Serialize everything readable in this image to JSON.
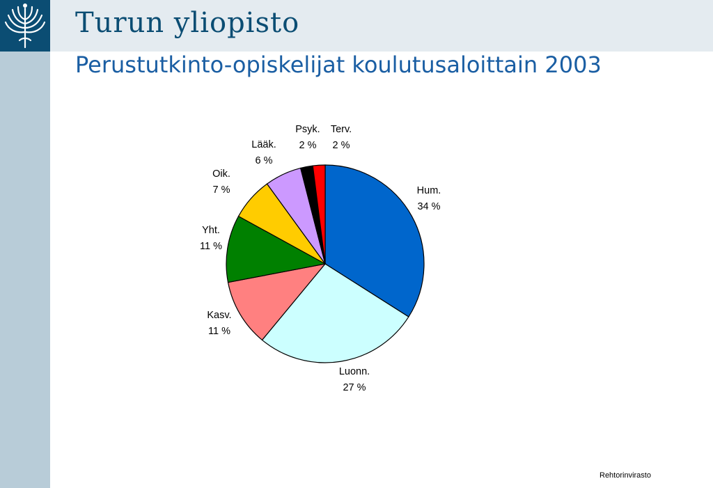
{
  "header": {
    "university_name": "Turun yliopisto",
    "title": "Perustutkinto-opiskelijat koulutusaloittain 2003"
  },
  "footer": {
    "text": "Rehtorinvirasto"
  },
  "chart_data": {
    "type": "pie",
    "title": "Perustutkinto-opiskelijat koulutusaloittain 2003",
    "slices": [
      {
        "label": "Hum.",
        "value": 34,
        "value_label": "34 %",
        "color": "#0066cc"
      },
      {
        "label": "Luonn.",
        "value": 27,
        "value_label": "27 %",
        "color": "#ccffff"
      },
      {
        "label": "Kasv.",
        "value": 11,
        "value_label": "11 %",
        "color": "#ff8080"
      },
      {
        "label": "Yht.",
        "value": 11,
        "value_label": "11 %",
        "color": "#008000"
      },
      {
        "label": "Oik.",
        "value": 7,
        "value_label": "7 %",
        "color": "#ffcc00"
      },
      {
        "label": "Lääk.",
        "value": 6,
        "value_label": "6 %",
        "color": "#cc99ff"
      },
      {
        "label": "Psyk.",
        "value": 2,
        "value_label": "2 %",
        "color": "#000000"
      },
      {
        "label": "Terv.",
        "value": 2,
        "value_label": "2 %",
        "color": "#ff0000"
      }
    ],
    "start": "12 o'clock",
    "direction": "clockwise"
  },
  "colors": {
    "brand_dark": "#0b4d73",
    "header_band": "#e4ebf0",
    "side_band": "#b8ccd8",
    "title_text": "#1a5ea3"
  }
}
